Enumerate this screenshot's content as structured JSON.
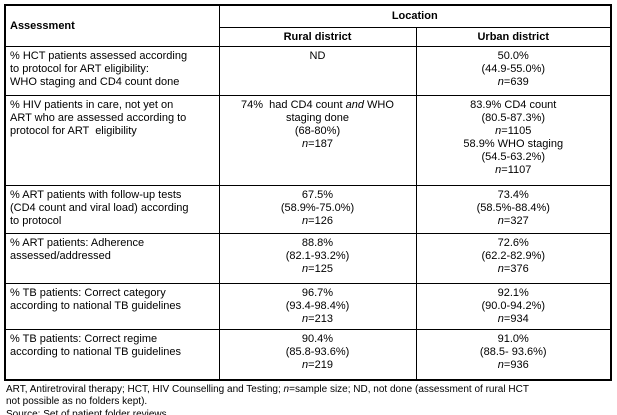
{
  "table": {
    "header": {
      "assessment": "Assessment",
      "location": "Location",
      "rural": "Rural district",
      "urban": "Urban district"
    },
    "rows": [
      {
        "label": "% HCT patients assessed according\nto protocol for ART eligibility:\nWHO staging and CD4 count done",
        "rural": "ND",
        "urban": "50.0%\n(44.9-55.0%)\n*n*=639"
      },
      {
        "label": "% HIV patients in care, not yet on\nART who are assessed according to\nprotocol for ART  eligibility",
        "rural": "74%  had CD4 count *and* WHO\nstaging done\n(68-80%)\n*n*=187",
        "urban": "83.9% CD4 count\n(80.5-87.3%)\n*n*=1105\n58.9% WHO staging\n(54.5-63.2%)\n*n*=1107"
      },
      {
        "label": "% ART patients with follow-up tests\n(CD4 count and viral load) according\nto protocol",
        "rural": "67.5%\n(58.9%-75.0%)\n*n*=126",
        "urban": "73.4%\n(58.5%-88.4%)\n*n*=327"
      },
      {
        "label": "% ART patients: Adherence\nassessed/addressed",
        "rural": "88.8%\n(82.1-93.2%)\n*n*=125",
        "urban": "72.6%\n(62.2-82.9%)\n*n*=376"
      },
      {
        "label": "% TB patients: Correct category\naccording to national TB guidelines",
        "rural": "96.7%\n(93.4-98.4%)\n*n*=213",
        "urban": "92.1%\n(90.0-94.2%)\n*n*=934"
      },
      {
        "label": "% TB patients: Correct regime\naccording to national TB guidelines",
        "rural": "90.4%\n(85.8-93.6%)\n*n*=219",
        "urban": "91.0%\n(88.5- 93.6%)\n*n*=936"
      }
    ]
  },
  "footnote": {
    "text": "ART, Antiretroviral therapy; HCT, HIV Counselling and Testing; *n*=sample size; ND, not done (assessment of rural HCT\nnot possible as no folders kept).\nSource: Set of patient folder reviews."
  },
  "colors": {
    "border": "#000000",
    "text": "#000000",
    "background": "#ffffff"
  }
}
